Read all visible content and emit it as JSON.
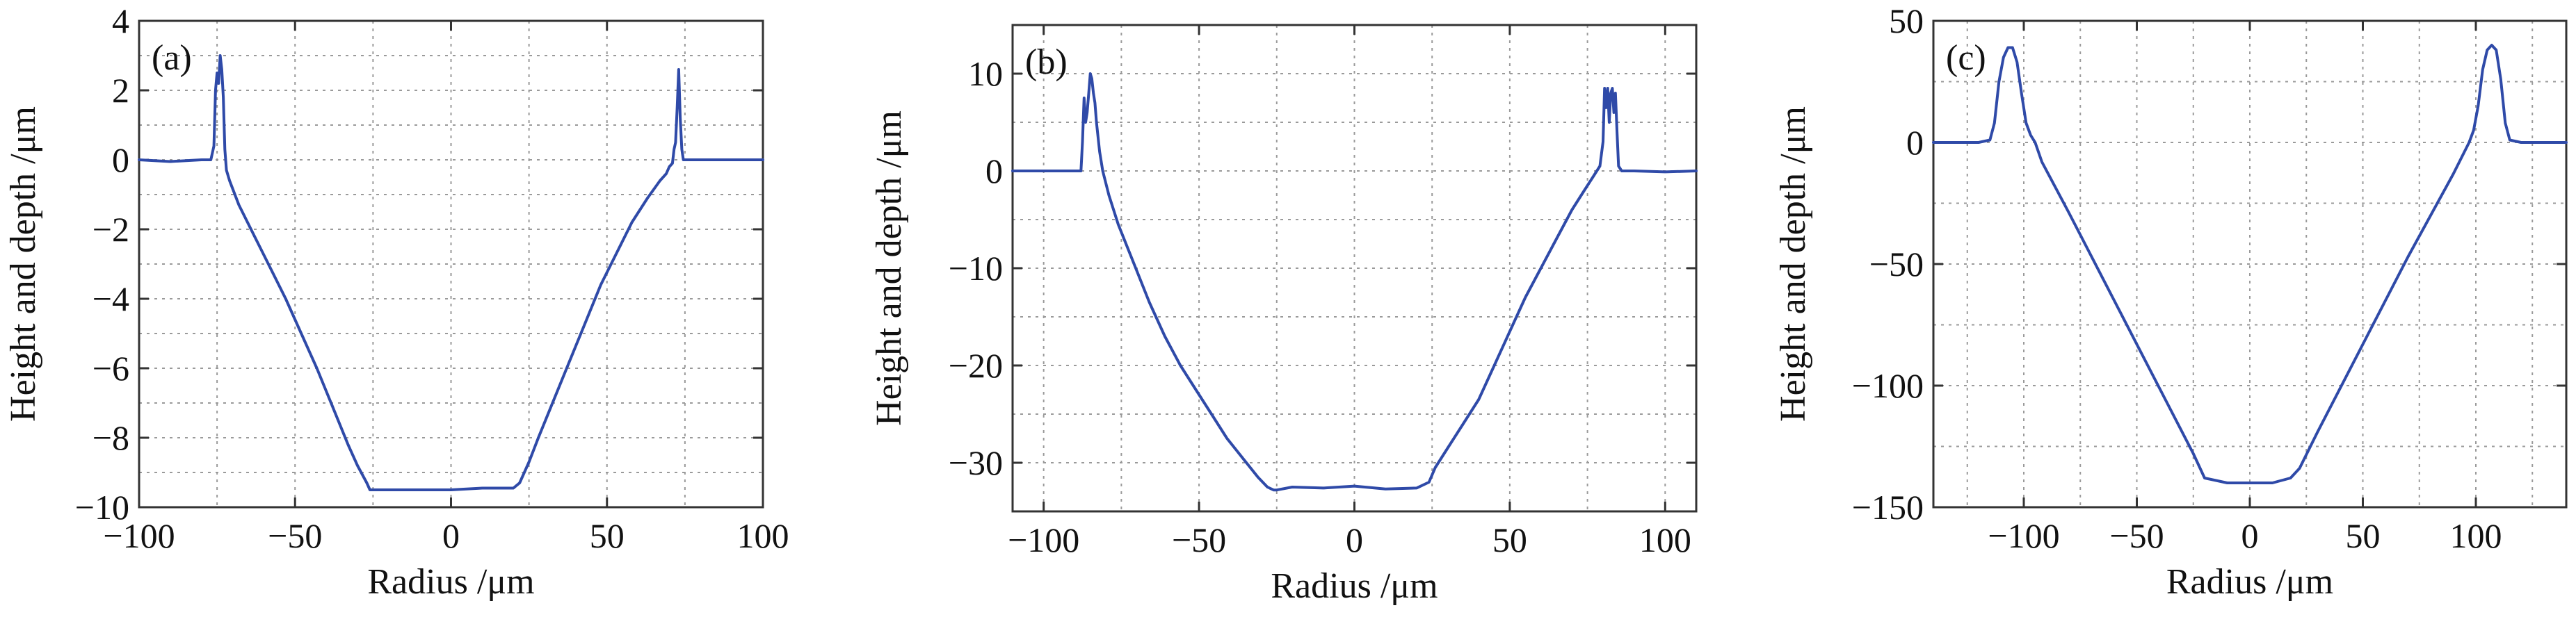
{
  "figure": {
    "colors": {
      "line": "#2f4aa8",
      "grid": "#9a9a9a",
      "frame": "#333333"
    }
  },
  "chart_data": [
    {
      "type": "line",
      "panel_label": "(a)",
      "xlabel": "Radius /μm",
      "ylabel": "Height and depth /μm",
      "xlim": [
        -100,
        100
      ],
      "ylim": [
        -10,
        4
      ],
      "xticks": [
        -100,
        -50,
        0,
        50,
        100
      ],
      "xtick_labels": [
        "−100",
        "−50",
        "0",
        "50",
        "100"
      ],
      "yticks": [
        4,
        2,
        0,
        -2,
        -4,
        -6,
        -8,
        -10
      ],
      "ytick_labels": [
        "4",
        "2",
        "0",
        "−2",
        "−4",
        "−6",
        "−8",
        "−10"
      ],
      "grid": true,
      "series": [
        {
          "x": [
            -100,
            -90,
            -80,
            -77,
            -76,
            -75.5,
            -75,
            -74.5,
            -74,
            -73.5,
            -73,
            -72.5,
            -72,
            -71,
            -68,
            -63,
            -58,
            -53,
            -48,
            -43,
            -38,
            -33,
            -30,
            -27,
            -26,
            -20,
            -10,
            0,
            10,
            20,
            22,
            25,
            28,
            33,
            38,
            43,
            48,
            53,
            58,
            63,
            67,
            69,
            70,
            71,
            71.5,
            72,
            72.5,
            73,
            73.5,
            74,
            74.5,
            75,
            76,
            80,
            90,
            100
          ],
          "y": [
            0,
            -0.05,
            0,
            0,
            0.4,
            2.0,
            2.5,
            2.2,
            3.0,
            2.6,
            1.8,
            0.3,
            -0.3,
            -0.6,
            -1.3,
            -2.2,
            -3.1,
            -4.0,
            -5.0,
            -6.0,
            -7.1,
            -8.2,
            -8.8,
            -9.3,
            -9.5,
            -9.5,
            -9.5,
            -9.5,
            -9.45,
            -9.45,
            -9.3,
            -8.7,
            -8.0,
            -6.9,
            -5.8,
            -4.7,
            -3.6,
            -2.7,
            -1.8,
            -1.1,
            -0.6,
            -0.4,
            -0.2,
            -0.1,
            0.3,
            0.5,
            1.5,
            2.6,
            1.2,
            0.3,
            0,
            0,
            0,
            0,
            0,
            0
          ]
        }
      ]
    },
    {
      "type": "line",
      "panel_label": "(b)",
      "xlabel": "Radius /μm",
      "ylabel": "Height and depth /μm",
      "xlim": [
        -110,
        110
      ],
      "ylim": [
        -35,
        15
      ],
      "xticks": [
        -100,
        -50,
        0,
        50,
        100
      ],
      "xtick_labels": [
        "−100",
        "−50",
        "0",
        "50",
        "100"
      ],
      "yticks": [
        10,
        0,
        -10,
        -20,
        -30
      ],
      "ytick_labels": [
        "10",
        "0",
        "−10",
        "−20",
        "−30"
      ],
      "grid": true,
      "series": [
        {
          "x": [
            -110,
            -95,
            -88,
            -87.5,
            -87,
            -86.5,
            -86,
            -85.5,
            -85,
            -84.5,
            -84,
            -83.5,
            -83,
            -82,
            -81,
            -79,
            -76,
            -71,
            -66,
            -61,
            -56,
            -51,
            -46,
            -41,
            -36,
            -31,
            -28,
            -26,
            -25,
            -20,
            -10,
            0,
            10,
            20,
            24,
            26,
            30,
            35,
            40,
            45,
            50,
            55,
            60,
            65,
            70,
            74,
            77,
            79,
            80,
            80.5,
            81,
            81.5,
            82,
            82.5,
            83,
            83.5,
            84,
            84.5,
            85,
            86,
            87,
            90,
            100,
            110
          ],
          "y": [
            0,
            0,
            0,
            3,
            7.5,
            5,
            6,
            8,
            10,
            9.5,
            8,
            7,
            5,
            2,
            0,
            -2.5,
            -5.5,
            -9.5,
            -13.5,
            -17,
            -20,
            -22.5,
            -25,
            -27.5,
            -29.5,
            -31.5,
            -32.5,
            -32.8,
            -32.8,
            -32.5,
            -32.6,
            -32.4,
            -32.7,
            -32.6,
            -32,
            -30.5,
            -28.5,
            -26,
            -23.5,
            -20,
            -16.5,
            -13,
            -10,
            -7,
            -4,
            -2,
            -0.5,
            0.5,
            3,
            8.5,
            6.5,
            8.5,
            5,
            8,
            8.5,
            6,
            8,
            4,
            0.5,
            0,
            0,
            0,
            -0.1,
            0
          ]
        }
      ]
    },
    {
      "type": "line",
      "panel_label": "(c)",
      "xlabel": "Radius /μm",
      "ylabel": "Height and depth /μm",
      "xlim": [
        -140,
        140
      ],
      "ylim": [
        -150,
        50
      ],
      "xticks": [
        -100,
        -50,
        0,
        50,
        100
      ],
      "xtick_labels": [
        "−100",
        "−50",
        "0",
        "50",
        "100"
      ],
      "yticks": [
        50,
        0,
        -50,
        -100,
        -150
      ],
      "ytick_labels": [
        "50",
        "0",
        "−50",
        "−100",
        "−150"
      ],
      "grid": true,
      "series": [
        {
          "x": [
            -140,
            -120,
            -115,
            -113,
            -111,
            -109,
            -107,
            -105,
            -103,
            -101,
            -99,
            -97,
            -95,
            -92,
            -80,
            -60,
            -40,
            -25,
            -20,
            -10,
            0,
            10,
            18,
            22,
            30,
            50,
            70,
            90,
            97,
            99,
            101,
            103,
            105,
            107,
            109,
            111,
            113,
            115,
            120,
            140
          ],
          "y": [
            0,
            0,
            1,
            8,
            25,
            35,
            39,
            39,
            33,
            20,
            8,
            3,
            0,
            -8,
            -29,
            -65,
            -101,
            -128,
            -138,
            -140,
            -140,
            -140,
            -138,
            -134,
            -119,
            -83,
            -47,
            -13,
            0,
            5,
            15,
            30,
            38,
            40,
            38,
            26,
            8,
            1,
            0,
            0
          ]
        }
      ]
    }
  ]
}
